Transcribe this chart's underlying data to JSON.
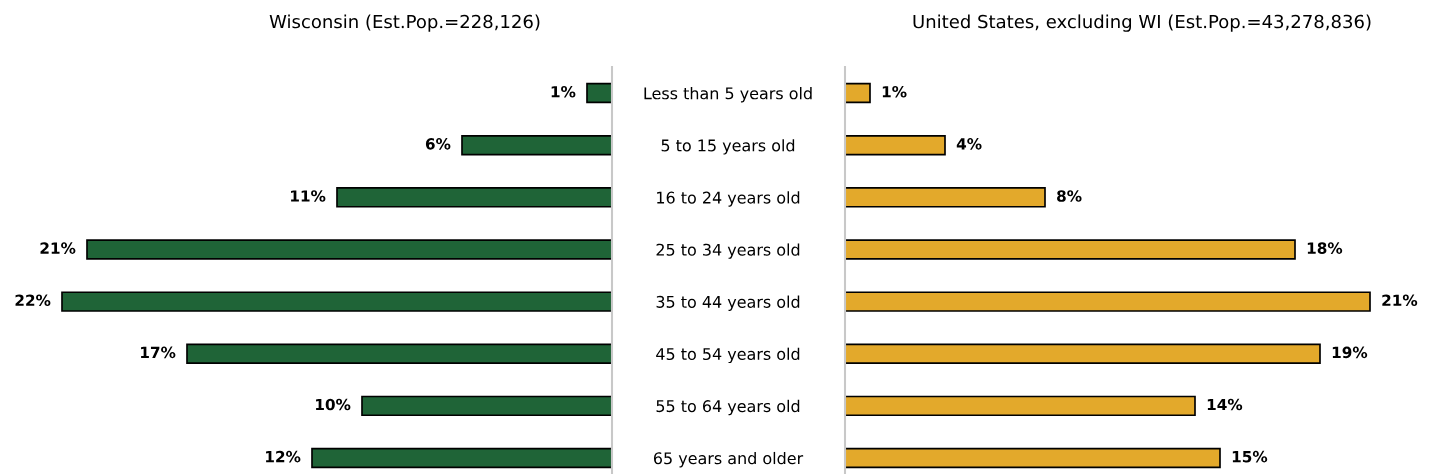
{
  "chart_data": [
    {
      "type": "bar",
      "orientation": "horizontal",
      "title": "Wisconsin (Est.Pop.=228,126)",
      "categories": [
        "Less than 5 years old",
        "5 to 15 years old",
        "16 to 24 years old",
        "25 to 34 years old",
        "35 to 44 years old",
        "45 to 54 years old",
        "55 to 64 years old",
        "65 years and older"
      ],
      "values": [
        1,
        6,
        11,
        21,
        22,
        17,
        10,
        12
      ],
      "value_labels": [
        "1%",
        "6%",
        "11%",
        "21%",
        "22%",
        "17%",
        "10%",
        "12%"
      ],
      "color": "#1f6437",
      "tick_labels": "y"
    },
    {
      "type": "bar",
      "orientation": "horizontal",
      "title": "United States, excluding WI (Est.Pop.=43,278,836)",
      "values": [
        1,
        4,
        8,
        18,
        21,
        19,
        14,
        15
      ],
      "value_labels": [
        "1%",
        "4%",
        "8%",
        "18%",
        "21%",
        "19%",
        "14%",
        "15%"
      ],
      "color": "#e3a92b",
      "tick_labels": false
    }
  ]
}
